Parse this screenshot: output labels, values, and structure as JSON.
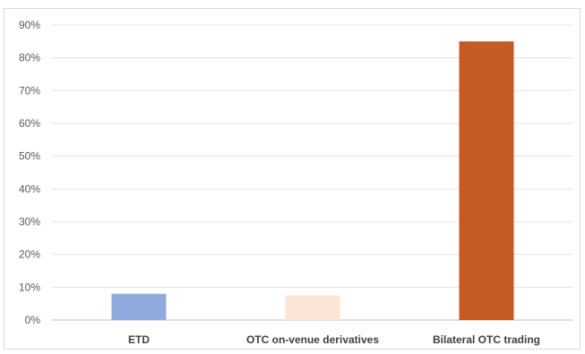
{
  "chart_data": {
    "type": "bar",
    "categories": [
      "ETD",
      "OTC on-venue derivatives",
      "Bilateral OTC trading"
    ],
    "values": [
      0.08,
      0.075,
      0.85
    ],
    "bar_colors": [
      "#8faadc",
      "#fbe5d6",
      "#c55a24"
    ],
    "yticks": [
      "0%",
      "10%",
      "20%",
      "30%",
      "40%",
      "50%",
      "60%",
      "70%",
      "80%",
      "90%"
    ],
    "ylim": [
      0,
      0.9
    ],
    "grid": true,
    "title": "",
    "xlabel": "",
    "ylabel": ""
  }
}
